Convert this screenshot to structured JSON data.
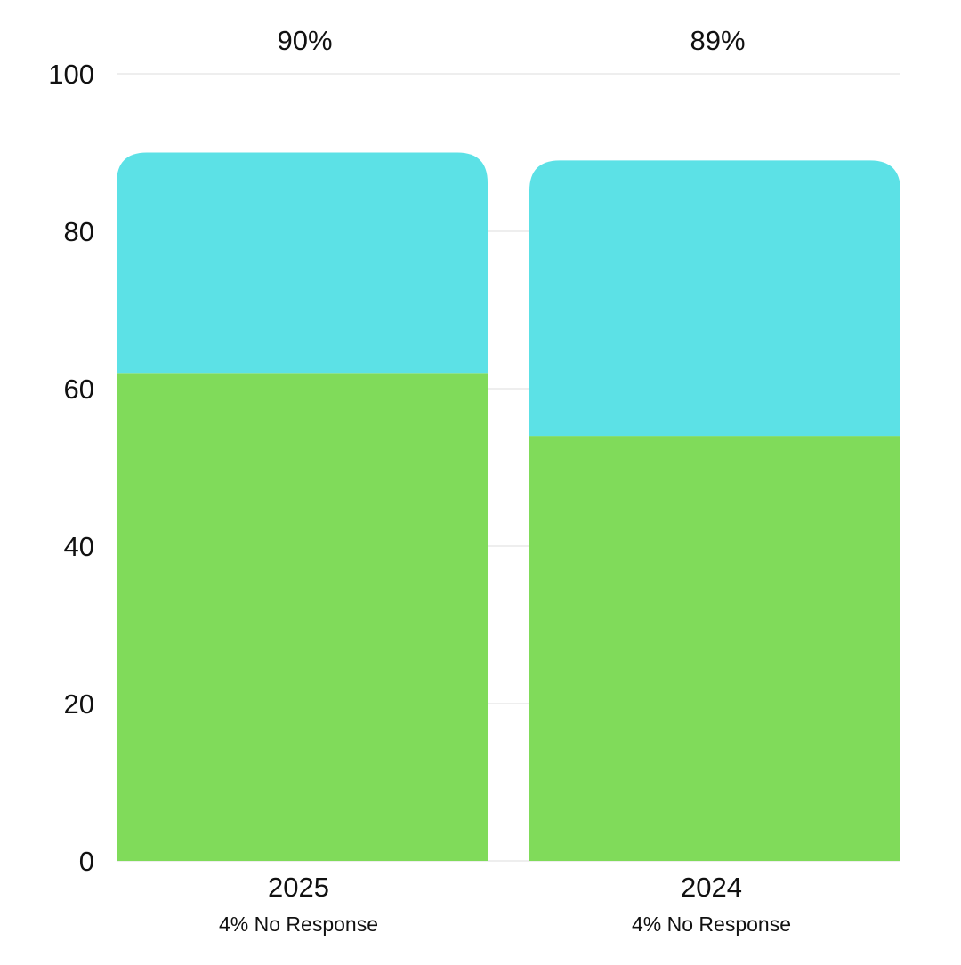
{
  "chart_data": {
    "type": "bar",
    "stacked": true,
    "categories": [
      "2025",
      "2024"
    ],
    "series": [
      {
        "values": [
          62,
          54
        ],
        "color": "#80db5a"
      },
      {
        "values": [
          28,
          35
        ],
        "color": "#5ce1e6"
      }
    ],
    "totals": [
      "90%",
      "89%"
    ],
    "subtitles": [
      "4% No Response",
      "4% No Response"
    ],
    "ylim": [
      0,
      100
    ],
    "yticks": [
      "0",
      "20",
      "40",
      "60",
      "80",
      "100"
    ],
    "grid": true,
    "gridline_color": "#dddddd",
    "title": "",
    "xlabel": "",
    "ylabel": ""
  }
}
